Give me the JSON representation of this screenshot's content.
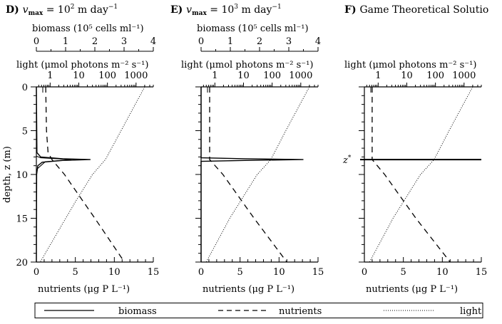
{
  "figure": {
    "panels": [
      {
        "id": "D",
        "title_letter": "D)",
        "title_text": "v",
        "title_sub": "max",
        "title_rest": " = 10",
        "title_exp": "2",
        "title_unit": " m day",
        "title_unit_exp": "−1",
        "show_biomass_axis": true
      },
      {
        "id": "E",
        "title_letter": "E)",
        "title_text": "v",
        "title_sub": "max",
        "title_rest": " = 10",
        "title_exp": "3",
        "title_unit": " m day",
        "title_unit_exp": "−1",
        "show_biomass_axis": true
      },
      {
        "id": "F",
        "title_letter": "F)",
        "title_full": "Game Theoretical Solutio",
        "show_biomass_axis": false,
        "zstar_label": "z*"
      }
    ],
    "biomass_axis_label": "biomass (10⁵ cells ml⁻¹)",
    "biomass_ticks": [
      "0",
      "1",
      "2",
      "3",
      "4"
    ],
    "light_axis_label": "light (μmol photons m⁻² s⁻¹)",
    "light_ticks": [
      "1",
      "10",
      "100",
      "1000"
    ],
    "depth_axis_label": "depth, z (m)",
    "depth_ticks": [
      "0",
      "5",
      "10",
      "15",
      "20"
    ],
    "nutrient_axis_label": "nutrients (μg P L⁻¹)",
    "nutrient_ticks": [
      "0",
      "5",
      "10",
      "15"
    ],
    "legend": {
      "biomass": "biomass",
      "nutrients": "nutrients",
      "light": "light"
    }
  },
  "chart_data": [
    {
      "type": "line",
      "title": "D) v_max = 10^2 m day^-1",
      "ylabel": "depth, z (m)",
      "ylim": [
        20,
        0
      ],
      "axes": {
        "bottom": {
          "label": "nutrients (μg P L^-1)",
          "range": [
            0,
            15
          ],
          "ticks": [
            0,
            5,
            10,
            15
          ]
        },
        "top_inner": {
          "label": "light (μmol photons m^-2 s^-1)",
          "scale": "log",
          "range": [
            0.33,
            4000
          ],
          "ticks": [
            1,
            10,
            100,
            1000
          ]
        },
        "top_outer": {
          "label": "biomass (10^5 cells ml^-1)",
          "range": [
            0,
            4
          ],
          "ticks": [
            0,
            1,
            2,
            3,
            4
          ]
        }
      },
      "series": [
        {
          "name": "biomass",
          "style": "solid",
          "depth": [
            0,
            7.5,
            8.0,
            8.2,
            8.3,
            8.4,
            8.6,
            9.0,
            10,
            20
          ],
          "values": [
            0,
            0.02,
            0.15,
            0.9,
            1.85,
            0.9,
            0.2,
            0.05,
            0.01,
            0
          ]
        },
        {
          "name": "nutrients",
          "style": "dashed",
          "depth": [
            0,
            5,
            7.5,
            8.3,
            10,
            15,
            20
          ],
          "values": [
            1.2,
            1.3,
            1.5,
            2.0,
            3.6,
            7.5,
            11.3
          ]
        },
        {
          "name": "light",
          "style": "dotted",
          "depth": [
            0,
            5,
            8.3,
            10,
            13,
            15,
            20
          ],
          "values": [
            2000,
            300,
            85,
            30,
            8,
            3.5,
            0.45
          ]
        }
      ]
    },
    {
      "type": "line",
      "title": "E) v_max = 10^3 m day^-1",
      "ylabel": "depth, z (m)",
      "ylim": [
        20,
        0
      ],
      "axes": {
        "bottom": {
          "label": "nutrients (μg P L^-1)",
          "range": [
            0,
            15
          ],
          "ticks": [
            0,
            5,
            10,
            15
          ]
        },
        "top_inner": {
          "label": "light (μmol photons m^-2 s^-1)",
          "scale": "log",
          "range": [
            0.33,
            4000
          ],
          "ticks": [
            1,
            10,
            100,
            1000
          ]
        },
        "top_outer": {
          "label": "biomass (10^5 cells ml^-1)",
          "range": [
            0,
            4
          ],
          "ticks": [
            0,
            1,
            2,
            3,
            4
          ]
        }
      },
      "series": [
        {
          "name": "biomass",
          "style": "solid",
          "depth": [
            0,
            8.1,
            8.2,
            8.3,
            8.4,
            8.5,
            20
          ],
          "values": [
            0,
            0,
            1.5,
            3.5,
            1.5,
            0,
            0
          ]
        },
        {
          "name": "nutrients",
          "style": "dashed",
          "depth": [
            0,
            8.3,
            10,
            15,
            20
          ],
          "values": [
            1.1,
            1.1,
            2.8,
            6.8,
            11.0
          ]
        },
        {
          "name": "light",
          "style": "dotted",
          "depth": [
            0,
            5,
            8.3,
            10,
            15,
            20
          ],
          "values": [
            2000,
            300,
            90,
            30,
            3.3,
            0.5
          ]
        }
      ]
    },
    {
      "type": "line",
      "title": "F) Game Theoretical Solution",
      "ylabel": "depth, z (m)",
      "ylim": [
        20,
        0
      ],
      "annotations": [
        {
          "text": "z*",
          "depth": 8.3
        }
      ],
      "axes": {
        "bottom": {
          "label": "nutrients (μg P L^-1)",
          "range": [
            0,
            15
          ],
          "ticks": [
            0,
            5,
            10,
            15
          ]
        },
        "top_inner": {
          "label": "light (μmol photons m^-2 s^-1)",
          "scale": "log",
          "range": [
            0.33,
            4000
          ],
          "ticks": [
            1,
            10,
            100,
            1000
          ]
        }
      },
      "series": [
        {
          "name": "biomass",
          "style": "solid",
          "note": "delta at z*",
          "depth": [
            8.3,
            8.3
          ],
          "values": [
            "full-width",
            "full-width"
          ]
        },
        {
          "name": "nutrients",
          "style": "dashed",
          "depth": [
            0,
            8.3,
            10,
            15,
            20
          ],
          "values": [
            1.0,
            1.0,
            2.6,
            6.6,
            11.0
          ]
        },
        {
          "name": "light",
          "style": "dotted",
          "depth": [
            0,
            5,
            8.3,
            10,
            15,
            20
          ],
          "values": [
            2000,
            300,
            90,
            30,
            3.3,
            0.5
          ]
        }
      ]
    }
  ]
}
